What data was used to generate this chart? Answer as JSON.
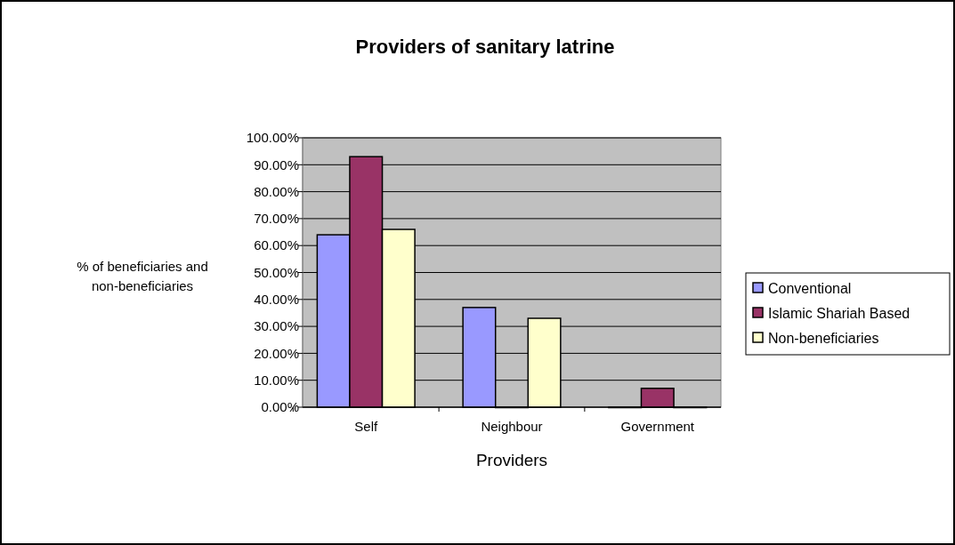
{
  "chart_data": {
    "type": "bar",
    "title": "Providers of sanitary latrine",
    "xlabel": "Providers",
    "ylabel": "% of beneficiaries and non-beneficiaries",
    "categories": [
      "Self",
      "Neighbour",
      "Government"
    ],
    "series": [
      {
        "name": "Conventional",
        "color": "#9999ff",
        "values": [
          64,
          37,
          0
        ]
      },
      {
        "name": "Islamic Shariah Based",
        "color": "#993366",
        "values": [
          93,
          0,
          7
        ]
      },
      {
        "name": "Non-beneficiaries",
        "color": "#ffffcc",
        "values": [
          66,
          33,
          0
        ]
      }
    ],
    "ylim": [
      0,
      100
    ],
    "yticks": [
      {
        "value": 0,
        "label": "0.00%"
      },
      {
        "value": 10,
        "label": "10.00%"
      },
      {
        "value": 20,
        "label": "20.00%"
      },
      {
        "value": 30,
        "label": "30.00%"
      },
      {
        "value": 40,
        "label": "40.00%"
      },
      {
        "value": 50,
        "label": "50.00%"
      },
      {
        "value": 60,
        "label": "60.00%"
      },
      {
        "value": 70,
        "label": "70.00%"
      },
      {
        "value": 80,
        "label": "80.00%"
      },
      {
        "value": 90,
        "label": "90.00%"
      },
      {
        "value": 100,
        "label": "100.00%"
      }
    ],
    "grid": "y",
    "legend": "right"
  }
}
